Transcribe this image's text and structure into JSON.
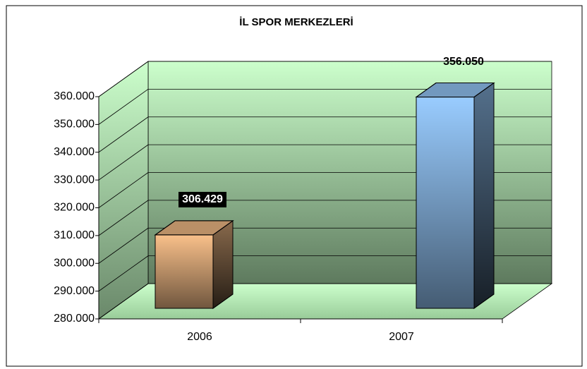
{
  "chart_data": {
    "type": "bar3d",
    "title": "İL SPOR MERKEZLERİ",
    "categories": [
      "2006",
      "2007"
    ],
    "values": [
      306429,
      356050
    ],
    "value_labels": [
      "306.429",
      "356.050"
    ],
    "colors": [
      "#f9c08a",
      "#99ccff"
    ],
    "ylim": [
      280000,
      360000
    ],
    "yticks": [
      {
        "value": 280000,
        "label": "280.000"
      },
      {
        "value": 290000,
        "label": "290.000"
      },
      {
        "value": 300000,
        "label": "300.000"
      },
      {
        "value": 310000,
        "label": "310.000"
      },
      {
        "value": 320000,
        "label": "320.000"
      },
      {
        "value": 330000,
        "label": "330.000"
      },
      {
        "value": 340000,
        "label": "340.000"
      },
      {
        "value": 350000,
        "label": "350.000"
      },
      {
        "value": 360000,
        "label": "360.000"
      }
    ],
    "grid": true
  }
}
